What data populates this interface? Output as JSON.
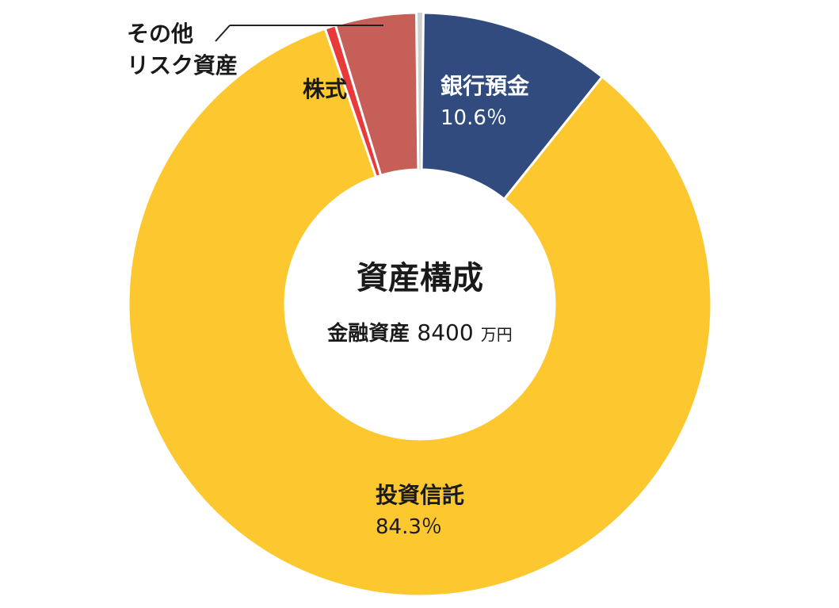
{
  "chart_data": {
    "type": "pie",
    "style": "donut",
    "categories": [
      "銀行預金",
      "投資信託",
      "その他 リスク資産",
      "株式"
    ],
    "values": [
      10.6,
      84.3,
      0.6,
      4.5
    ],
    "unit": "%",
    "colors": {
      "銀行預金": "#314b7f",
      "投資信託": "#fdc82f",
      "株式": "#c65f58",
      "その他 リスク資産": "#e83a3a",
      "gap": "#cfcfcf"
    },
    "labels": {
      "bank": "銀行預金",
      "bank_pct": "10.6％",
      "fund": "投資信託",
      "fund_pct": "84.3％",
      "stock": "株式",
      "other_line1": "その他",
      "other_line2": "リスク資産"
    },
    "center": {
      "title": "資産構成",
      "subtitle_label": "金融資産",
      "subtitle_amount": "8400",
      "subtitle_unit": "万円"
    }
  }
}
